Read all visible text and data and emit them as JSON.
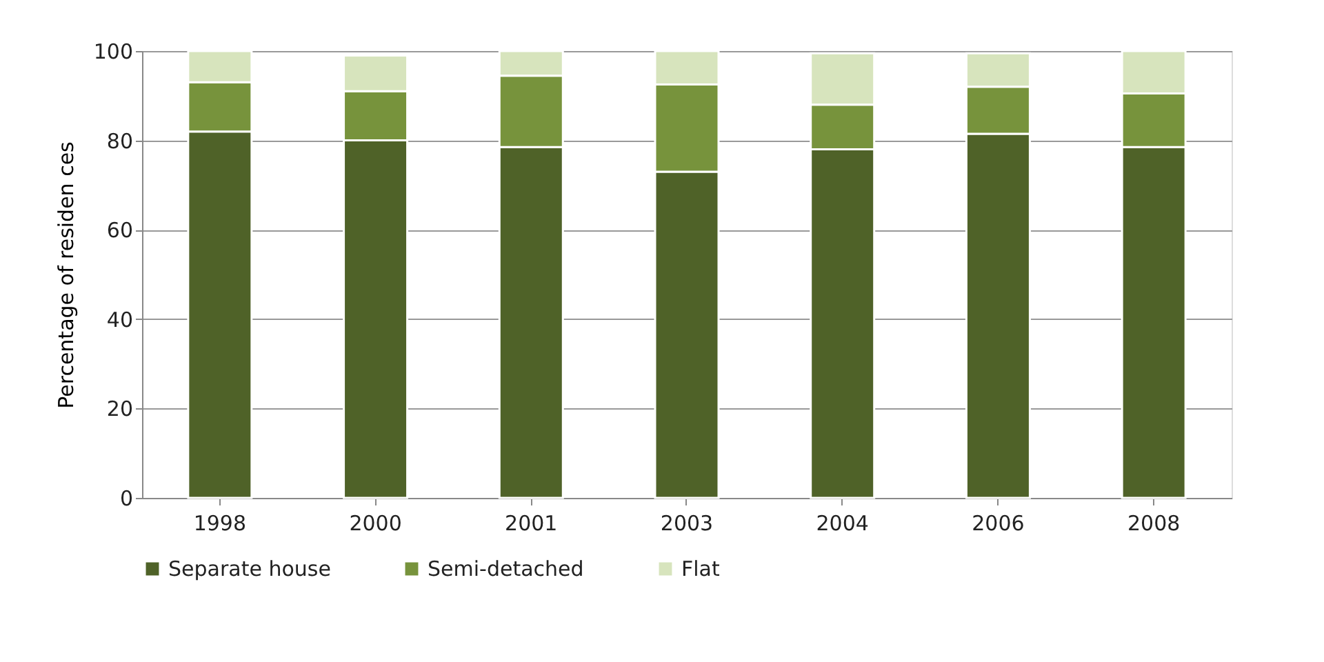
{
  "chart_data": {
    "type": "bar",
    "stacked": true,
    "ylabel": "Percentage of residen ces",
    "categories": [
      "1998",
      "2000",
      "2001",
      "2003",
      "2004",
      "2006",
      "2008"
    ],
    "series": [
      {
        "name": "Separate house",
        "color": "#4f6228",
        "values": [
          82,
          80,
          78.5,
          73,
          78,
          81.5,
          78.5
        ]
      },
      {
        "name": "Semi-detached",
        "color": "#77933c",
        "values": [
          11,
          11,
          16,
          19.5,
          10,
          10.5,
          12
        ]
      },
      {
        "name": "Flat",
        "color": "#d7e4bd",
        "values": [
          7,
          8,
          5.5,
          7.5,
          11.5,
          7.5,
          9.5
        ]
      }
    ],
    "ylim": [
      0,
      100
    ],
    "yticks": [
      0,
      20,
      40,
      60,
      80,
      100
    ],
    "grid": "y",
    "legend": "bottom"
  }
}
